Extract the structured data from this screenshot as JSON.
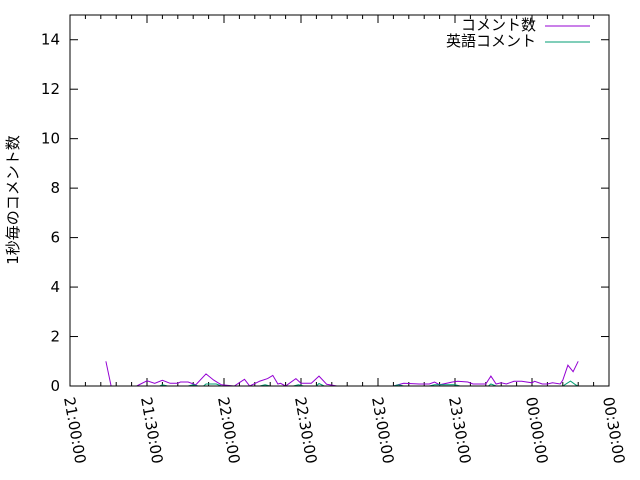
{
  "chart_data": {
    "type": "line",
    "title": "",
    "xlabel": "",
    "ylabel": "1秒毎のコメント数",
    "xlim": [
      "21:00:00",
      "00:30:00"
    ],
    "ylim": [
      0,
      15
    ],
    "x_ticks": [
      "21:00:00",
      "21:30:00",
      "22:00:00",
      "22:30:00",
      "23:00:00",
      "23:30:00",
      "00:00:00",
      "00:30:00"
    ],
    "y_ticks": [
      "0",
      "2",
      "4",
      "6",
      "8",
      "10",
      "12",
      "14"
    ],
    "legend_position": "top-right",
    "grid": false,
    "series": [
      {
        "name": "コメント数",
        "color": "#9400d3",
        "points": [
          [
            "21:14",
            1.0
          ],
          [
            "21:16",
            0
          ],
          null,
          [
            "21:26",
            0
          ],
          [
            "21:30",
            0.21
          ],
          [
            "21:33",
            0.11
          ],
          [
            "21:36",
            0.23
          ],
          [
            "21:39",
            0.11
          ],
          [
            "21:42",
            0.11
          ],
          [
            "21:43",
            0.16
          ],
          [
            "21:46",
            0.16
          ],
          [
            "21:49",
            0.05
          ],
          [
            "21:53",
            0.49
          ],
          [
            "21:56",
            0.24
          ],
          [
            "21:59",
            0.05
          ],
          [
            "22:04",
            0
          ],
          [
            "22:08",
            0.27
          ],
          [
            "22:10",
            0
          ],
          [
            "22:14",
            0.2
          ],
          [
            "22:17",
            0.3
          ],
          [
            "22:19",
            0.43
          ],
          [
            "22:21",
            0.08
          ],
          [
            "22:22",
            0.11
          ],
          [
            "22:24",
            0
          ],
          [
            "22:28",
            0.3
          ],
          [
            "22:30",
            0.11
          ],
          [
            "22:34",
            0.11
          ],
          [
            "22:37",
            0.4
          ],
          [
            "22:40",
            0.07
          ],
          [
            "22:44",
            0
          ],
          [
            "23:06",
            0
          ],
          [
            "23:10",
            0.11
          ],
          [
            "23:16",
            0.08
          ],
          [
            "23:20",
            0.08
          ],
          [
            "23:22",
            0.16
          ],
          [
            "23:24",
            0.05
          ],
          [
            "23:29",
            0.16
          ],
          [
            "23:31",
            0.19
          ],
          [
            "23:35",
            0.16
          ],
          [
            "23:37",
            0.08
          ],
          [
            "23:42",
            0.08
          ],
          [
            "23:44",
            0.4
          ],
          [
            "23:46",
            0.08
          ],
          [
            "23:48",
            0.13
          ],
          [
            "23:50",
            0.08
          ],
          [
            "23:53",
            0.19
          ],
          [
            "23:56",
            0.19
          ],
          [
            "00:00",
            0.13
          ],
          [
            "00:01",
            0.19
          ],
          [
            "00:04",
            0.08
          ],
          [
            "00:06",
            0.08
          ],
          [
            "00:08",
            0.13
          ],
          [
            "00:11",
            0.08
          ],
          [
            "00:12",
            0.24
          ],
          [
            "00:14",
            0.84
          ],
          [
            "00:16",
            0.58
          ],
          [
            "00:18",
            1.0
          ]
        ]
      },
      {
        "name": "英語コメント",
        "color": "#009e73",
        "points": [
          [
            "21:26",
            0
          ],
          [
            "21:35",
            0
          ],
          [
            "21:36",
            0.05
          ],
          [
            "21:38",
            0
          ],
          [
            "21:46",
            0
          ],
          [
            "21:48",
            0.05
          ],
          [
            "21:50",
            0
          ],
          [
            "21:52",
            0
          ],
          [
            "21:53",
            0.08
          ],
          [
            "21:57",
            0.08
          ],
          [
            "21:59",
            0
          ],
          [
            "22:14",
            0
          ],
          [
            "22:16",
            0.05
          ],
          [
            "22:18",
            0
          ],
          [
            "22:27",
            0
          ],
          [
            "22:29",
            0.05
          ],
          [
            "22:31",
            0
          ],
          [
            "22:36",
            0
          ],
          [
            "22:37",
            0.1
          ],
          [
            "22:39",
            0
          ],
          [
            "22:44",
            0
          ],
          [
            "23:06",
            0
          ],
          [
            "23:08",
            0.05
          ],
          [
            "23:10",
            0
          ],
          [
            "23:20",
            0
          ],
          [
            "23:22",
            0.05
          ],
          [
            "23:30",
            0.05
          ],
          [
            "23:32",
            0
          ],
          [
            "23:43",
            0
          ],
          [
            "23:44",
            0.08
          ],
          [
            "23:46",
            0
          ],
          [
            "00:00",
            0
          ],
          [
            "00:12",
            0
          ],
          [
            "00:15",
            0.2
          ],
          [
            "00:17",
            0.05
          ],
          [
            "00:18",
            0
          ]
        ]
      }
    ]
  }
}
